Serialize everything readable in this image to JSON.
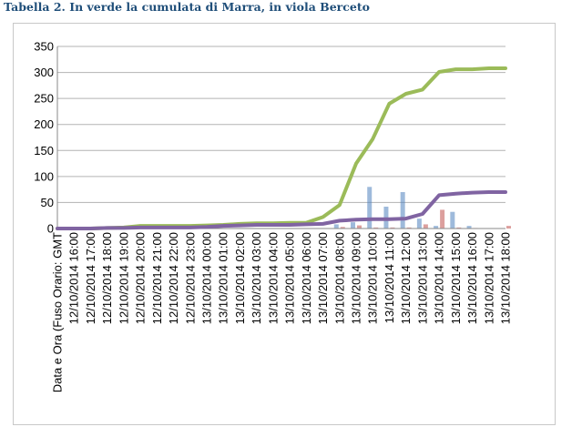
{
  "caption": "Tabella 2. In verde la cumulata di Marra, in viola Berceto",
  "chart_data": {
    "type": "line",
    "title": "",
    "xlabel": "",
    "ylabel": "",
    "ylim": [
      0,
      350
    ],
    "yticks": [
      0,
      50,
      100,
      150,
      200,
      250,
      300,
      350
    ],
    "grid": "horizontal",
    "legend": "none",
    "categories": [
      "Data e Ora (Fuso Orario: GMT",
      "12/10/2014 16:00",
      "12/10/2014 17:00",
      "12/10/2014 18:00",
      "12/10/2014 19:00",
      "12/10/2014 20:00",
      "12/10/2014 21:00",
      "12/10/2014 22:00",
      "12/10/2014 23:00",
      "13/10/2014 00:00",
      "13/10/2014 01:00",
      "13/10/2014 02:00",
      "13/10/2014 03:00",
      "13/10/2014 04:00",
      "13/10/2014 05:00",
      "13/10/2014 06:00",
      "13/10/2014 07:00",
      "13/10/2014 08:00",
      "13/10/2014 09:00",
      "13/10/2014 10:00",
      "13/10/2014 11:00",
      "13/10/2014 12:00",
      "13/10/2014 13:00",
      "13/10/2014 14:00",
      "13/10/2014 15:00",
      "13/10/2014 16:00",
      "13/10/2014 17:00",
      "13/10/2014 18:00"
    ],
    "series": [
      {
        "type": "line",
        "color": "#9bbb59",
        "values": [
          0,
          0,
          0,
          1,
          2,
          5,
          5,
          5,
          5,
          6,
          7,
          9,
          10,
          10,
          11,
          11,
          22,
          45,
          125,
          172,
          240,
          259,
          267,
          301,
          306,
          306,
          308,
          308
        ]
      },
      {
        "type": "line",
        "color": "#8064a2",
        "values": [
          0,
          0,
          0,
          1,
          1,
          2,
          2,
          2,
          2,
          3,
          5,
          6,
          7,
          7,
          7,
          8,
          9,
          15,
          17,
          18,
          18,
          19,
          28,
          64,
          67,
          69,
          70,
          70
        ]
      },
      {
        "type": "bar",
        "color": "#4f81bd",
        "values": [
          0,
          0,
          0,
          0,
          0,
          0,
          0,
          0,
          0,
          0,
          0,
          0,
          0,
          0,
          0,
          0,
          0,
          8,
          12,
          80,
          42,
          70,
          19,
          5,
          32,
          5,
          0,
          0
        ]
      },
      {
        "type": "bar",
        "color": "#c0504d",
        "values": [
          0,
          0,
          0,
          0,
          0,
          0,
          0,
          0,
          0,
          0,
          0,
          0,
          0,
          0,
          0,
          0,
          0,
          3,
          6,
          2,
          2,
          2,
          8,
          36,
          2,
          1,
          0,
          5
        ]
      }
    ]
  }
}
